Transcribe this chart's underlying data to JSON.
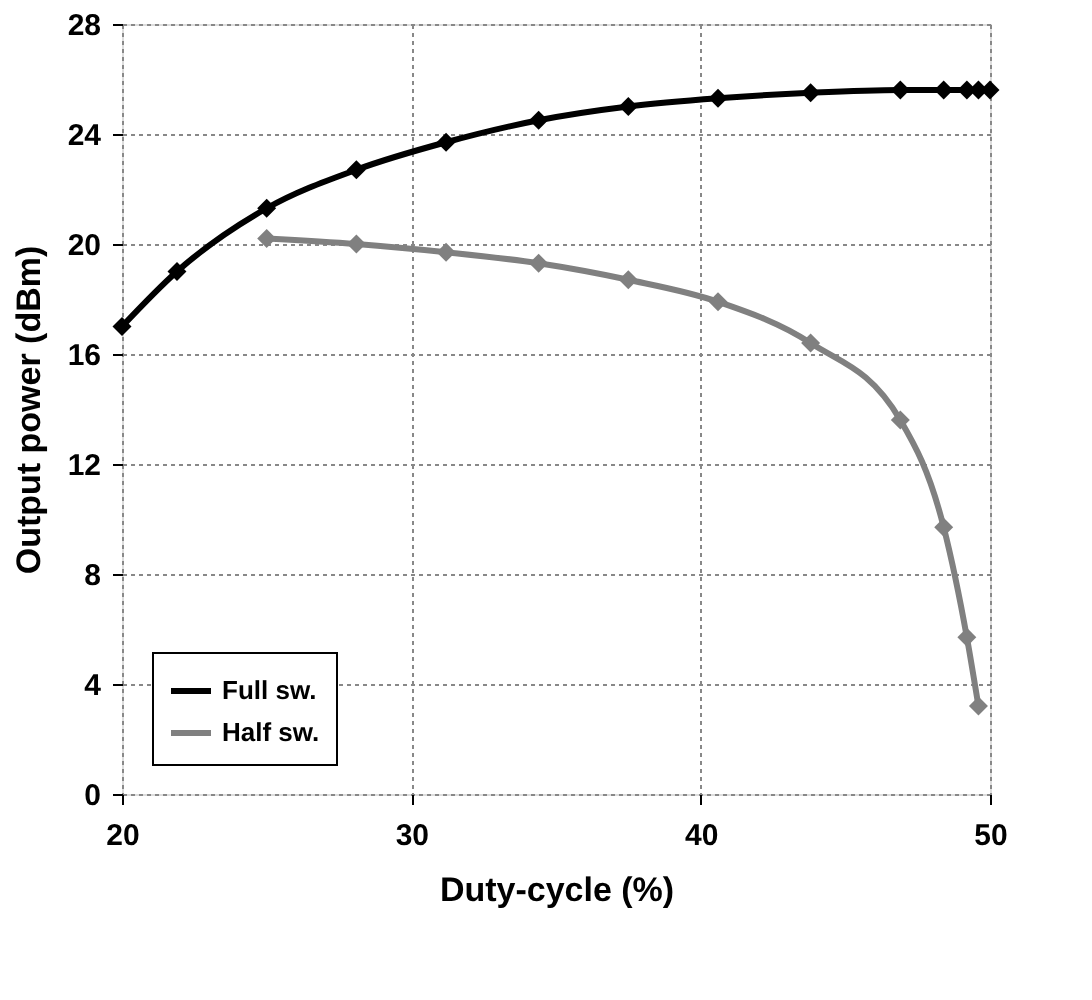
{
  "chart_data": {
    "type": "line",
    "xlabel": "Duty-cycle (%)",
    "ylabel": "Output power (dBm)",
    "xlim": [
      20,
      50
    ],
    "xticks": [
      20,
      30,
      40,
      50
    ],
    "ylim": [
      0,
      28
    ],
    "yticks": [
      0,
      4,
      8,
      12,
      16,
      20,
      24,
      28
    ],
    "grid": true,
    "legend": "bottom left",
    "marker": "diamond",
    "line_style": "solid",
    "series": [
      {
        "name": "Full sw.",
        "color": "#000000",
        "x": [
          20,
          21.9,
          25,
          28.1,
          31.2,
          34.4,
          37.5,
          40.6,
          43.8,
          46.9,
          48.4,
          49.2,
          49.6,
          50
        ],
        "values": [
          17,
          19,
          21.3,
          22.7,
          23.7,
          24.5,
          25,
          25.3,
          25.5,
          25.6,
          25.6,
          25.6,
          25.6,
          25.6
        ]
      },
      {
        "name": "Half sw.",
        "color": "#808080",
        "x": [
          25,
          28.1,
          31.2,
          34.4,
          37.5,
          40.6,
          43.8,
          46.9,
          48.4,
          49.2,
          49.6
        ],
        "values": [
          20.2,
          20,
          19.7,
          19.3,
          18.7,
          17.9,
          16.4,
          13.6,
          9.7,
          5.7,
          3.2
        ]
      }
    ]
  }
}
